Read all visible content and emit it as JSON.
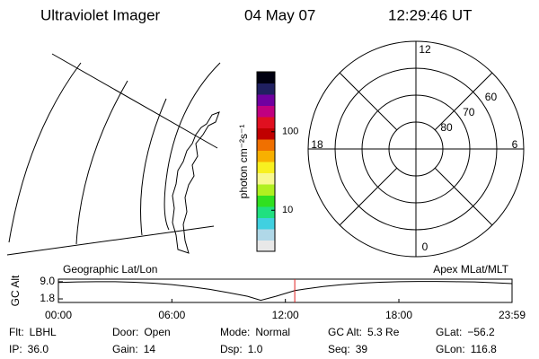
{
  "header": {
    "title": "Ultraviolet Imager",
    "date": "04 May 07",
    "time": "12:29:46 UT"
  },
  "colorbar": {
    "label": "photon cm⁻²s⁻¹",
    "log": true,
    "lim": [
      3,
      580
    ],
    "ticks": [
      10,
      100
    ],
    "colors": [
      "#e8e8e8",
      "#b0d8e8",
      "#40d0e0",
      "#20e080",
      "#30e020",
      "#b0f020",
      "#f8f890",
      "#f8f020",
      "#f8b000",
      "#f07000",
      "#c00000",
      "#e01020",
      "#c00080",
      "#7000a0",
      "#202060",
      "#000010"
    ]
  },
  "polar": {
    "lat_lim": [
      50,
      90
    ],
    "lat_ticks": [
      60,
      70,
      80
    ],
    "mlt_ticks": [
      12,
      18,
      6,
      0
    ]
  },
  "chart_data": {
    "type": "line",
    "ylabel": "GC Alt",
    "left_title": "Geographic Lat/Lon",
    "right_title": "Apex MLat/MLT",
    "xlim": [
      0,
      23.983
    ],
    "xticks": [
      {
        "value": 0,
        "label": "00:00"
      },
      {
        "value": 6,
        "label": "06:00"
      },
      {
        "value": 12,
        "label": "12:00"
      },
      {
        "value": 18,
        "label": "18:00"
      },
      {
        "value": 23.983,
        "label": "23:59"
      }
    ],
    "ylim": [
      0.3,
      10.1
    ],
    "yticks": [
      {
        "value": 9,
        "label": "9.0"
      },
      {
        "value": 1.8,
        "label": "1.8"
      }
    ],
    "color": "#000000",
    "marker_color": "#e02020",
    "marker_x": 12.496,
    "x": [
      0,
      1,
      2,
      3,
      4,
      5,
      6,
      7,
      8,
      9,
      10,
      10.7,
      11.5,
      12.5,
      13,
      14,
      15,
      16,
      17,
      18,
      19,
      20,
      21,
      22,
      23,
      23.983
    ],
    "values": [
      8.7,
      8.9,
      9.0,
      9.0,
      8.8,
      8.4,
      7.8,
      6.9,
      5.8,
      4.4,
      2.9,
      1.2,
      2.9,
      5.3,
      5.9,
      7.0,
      7.8,
      8.4,
      8.8,
      9.0,
      9.1,
      9.1,
      9.0,
      8.9,
      8.6,
      8.2
    ]
  },
  "footer": [
    [
      {
        "label": "Flt:",
        "value": "LBHL"
      },
      {
        "label": "IP:",
        "value": "36.0"
      }
    ],
    [
      {
        "label": "Door:",
        "value": "Open"
      },
      {
        "label": "Gain:",
        "value": "14"
      }
    ],
    [
      {
        "label": "Mode:",
        "value": "Normal"
      },
      {
        "label": "Dsp:",
        "value": "1.0"
      }
    ],
    [
      {
        "label": "GC Alt:",
        "value": "5.3 Re"
      },
      {
        "label": "Seq:",
        "value": "39"
      }
    ],
    [
      {
        "label": "GLat:",
        "value": "−56.2"
      },
      {
        "label": "GLon:",
        "value": "116.8"
      }
    ]
  ]
}
